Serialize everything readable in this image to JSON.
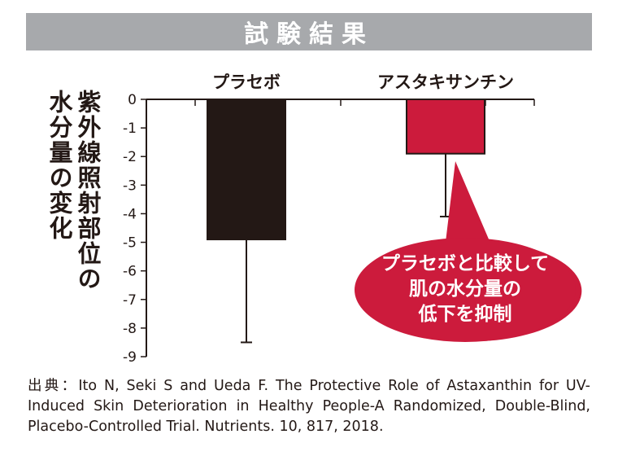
{
  "banner": {
    "title": "試験結果"
  },
  "chart_data": {
    "type": "bar",
    "categories": [
      "プラセボ",
      "アスタキサンチン"
    ],
    "series": [
      {
        "values": [
          -4.9,
          -1.9
        ],
        "error_low": [
          -8.5,
          -4.1
        ],
        "colors": [
          "#231815",
          "#cc1b3c"
        ]
      }
    ],
    "ylabel_lines": [
      "紫外線照射部位の",
      "水分量の変化"
    ],
    "ylim": [
      -9,
      0
    ],
    "yticks": [
      0,
      -1,
      -2,
      -3,
      -4,
      -5,
      -6,
      -7,
      -8,
      -9
    ],
    "error_bars": true,
    "grid": false,
    "annotation": {
      "lines": [
        "プラセボと比較して",
        "肌の水分量の",
        "低下を抑制"
      ],
      "color": "#cc1b3c"
    }
  },
  "source": {
    "text": "出典：Ito N, Seki S and Ueda F. The Protective Role of Astaxanthin for UV-Induced Skin Deterioration in Healthy People-A Randomized, Double-Blind, Placebo-Controlled Trial. Nutrients. 10, 817, 2018."
  }
}
